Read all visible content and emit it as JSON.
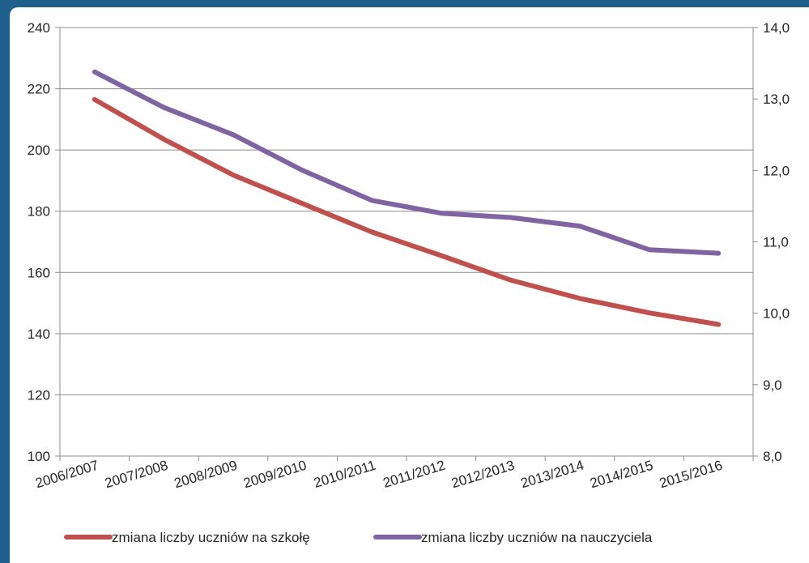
{
  "chart_data": {
    "type": "line",
    "categories": [
      "2006/2007",
      "2007/2008",
      "2008/2009",
      "2009/2010",
      "2010/2011",
      "2011/2012",
      "2012/2013",
      "2013/2014",
      "2014/2015",
      "2015/2016"
    ],
    "series": [
      {
        "name": "zmiana liczby uczniów na szkołę",
        "axis": "left",
        "color": "#c0504d",
        "values": [
          216.5,
          203.5,
          191.8,
          182.5,
          173.2,
          165.5,
          157.5,
          151.5,
          146.8,
          143.0
        ]
      },
      {
        "name": "zmiana liczby uczniów na nauczyciela",
        "axis": "right",
        "color": "#8064a2",
        "values": [
          13.38,
          12.88,
          12.5,
          12.0,
          11.58,
          11.4,
          11.34,
          11.22,
          10.89,
          10.84
        ]
      }
    ],
    "y_left": {
      "min": 100,
      "max": 240,
      "step": 20,
      "ticks": [
        "100",
        "120",
        "140",
        "160",
        "180",
        "200",
        "220",
        "240"
      ]
    },
    "y_right": {
      "min": 8,
      "max": 14,
      "step": 1,
      "ticks": [
        "8,0",
        "9,0",
        "10,0",
        "11,0",
        "12,0",
        "13,0",
        "14,0"
      ]
    },
    "grid": true,
    "legend_position": "bottom"
  }
}
